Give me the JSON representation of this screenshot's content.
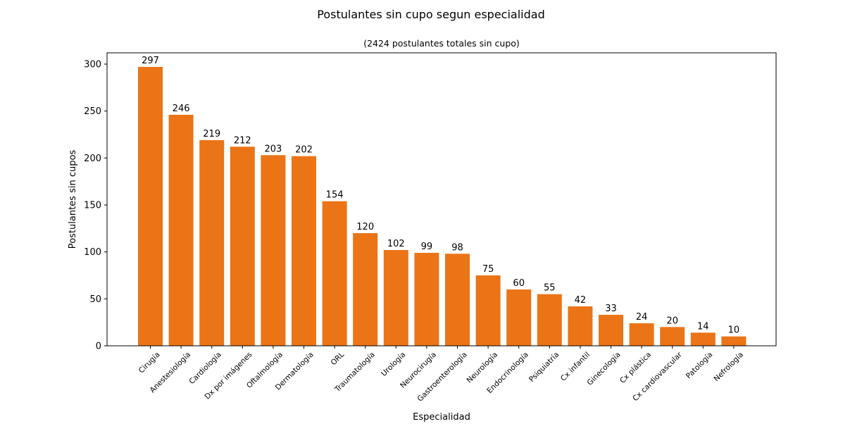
{
  "chart_data": {
    "type": "bar",
    "title": "Postulantes sin cupo segun especialidad",
    "subtitle": "(2424 postulantes totales sin cupo)",
    "xlabel": "Especialidad",
    "ylabel": "Postulantes sin cupos",
    "ylim": [
      0,
      312
    ],
    "yticks": [
      0,
      50,
      100,
      150,
      200,
      250,
      300
    ],
    "grid": false,
    "bar_color": "#eb7417",
    "categories": [
      "Cirugía",
      "Anestesiología",
      "Cardiología",
      "Dx por imágenes",
      "Oftalmología",
      "Dermatología",
      "ORL",
      "Traumatología",
      "Urología",
      "Neurocirugía",
      "Gastroenterología",
      "Neurología",
      "Endocrinología",
      "Psiquiatría",
      "Cx infantil",
      "Ginecología",
      "Cx plástica",
      "Cx cardiovascular",
      "Patología",
      "Nefrología"
    ],
    "values": [
      297,
      246,
      219,
      212,
      203,
      202,
      154,
      120,
      102,
      99,
      98,
      75,
      60,
      55,
      42,
      33,
      24,
      20,
      14,
      10
    ]
  }
}
